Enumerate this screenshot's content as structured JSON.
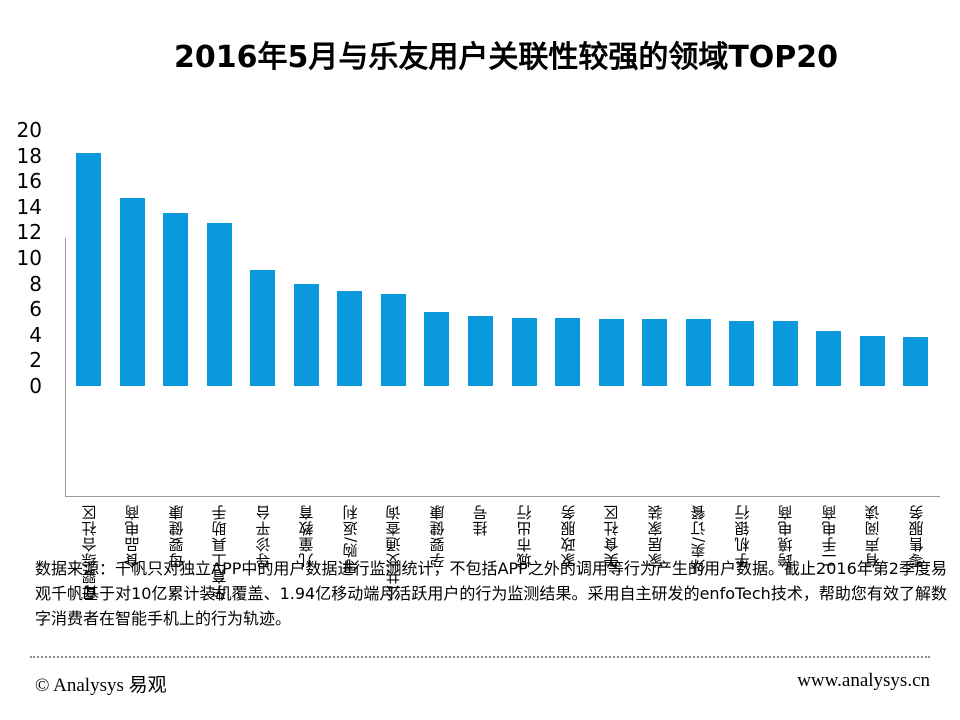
{
  "title": "2016年5月与乐友用户关联性较强的领域TOP20",
  "chart_data": {
    "type": "bar",
    "title": "2016年5月与乐友用户关联性较强的领域TOP20",
    "categories": [
      "母婴综合社区",
      "食品电商",
      "母婴健康",
      "孕育工具助手",
      "导诊平台",
      "儿童教育",
      "导购/返利",
      "公共交通查询",
      "孕婴健康",
      "挂号",
      "城市出行",
      "家政服务",
      "美食社区",
      "家居家装",
      "外卖/订餐",
      "手机银行",
      "跨境电商",
      "二手电商",
      "有声阅读",
      "零售服务"
    ],
    "values": [
      18.2,
      14.7,
      13.5,
      12.7,
      9.1,
      8.0,
      7.4,
      7.2,
      5.8,
      5.5,
      5.3,
      5.3,
      5.2,
      5.2,
      5.2,
      5.1,
      5.1,
      4.3,
      3.9,
      3.8
    ],
    "xlabel": "",
    "ylabel": "",
    "ylim": [
      0,
      20
    ],
    "yticks": [
      0,
      2,
      4,
      6,
      8,
      10,
      12,
      14,
      16,
      18,
      20
    ],
    "grid": false,
    "legend": "none",
    "bar_color": "#0A99DC",
    "axis_color": "#999999"
  },
  "footnote": "数据来源：千帆只对独立APP中的用户数据进行监测统计，不包括APP之外的调用等行为产生的用户数据。截止2016年第2季度易观千帆基于对10亿累计装机覆盖、1.94亿移动端月活跃用户的行为监测结果。采用自主研发的enfoTech技术，帮助您有效了解数字消费者在智能手机上的行为轨迹。",
  "footer": {
    "copyright": "© Analysys 易观",
    "website": "www.analysys.cn"
  }
}
